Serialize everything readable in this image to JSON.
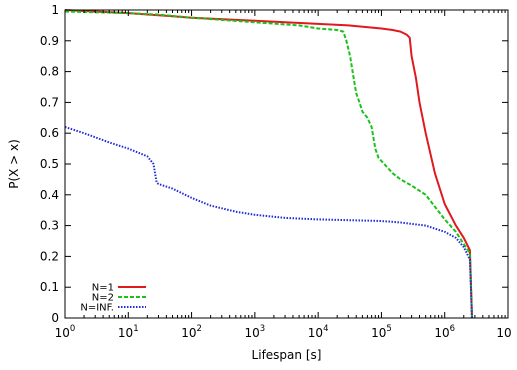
{
  "chart_data": {
    "type": "line",
    "title": "",
    "xlabel": "Lifespan [s]",
    "ylabel": "P(X > x)",
    "xscale": "log",
    "xlim": [
      1,
      10000000
    ],
    "ylim": [
      0,
      1
    ],
    "grid": false,
    "legend_position": "bottom-left",
    "x_ticks": [
      {
        "base": "10",
        "exp": "0"
      },
      {
        "base": "10",
        "exp": "1"
      },
      {
        "base": "10",
        "exp": "2"
      },
      {
        "base": "10",
        "exp": "3"
      },
      {
        "base": "10",
        "exp": "4"
      },
      {
        "base": "10",
        "exp": "5"
      },
      {
        "base": "10",
        "exp": "6"
      },
      {
        "base": "10",
        "exp": ""
      }
    ],
    "y_ticks": [
      "0",
      "0.1",
      "0.2",
      "0.3",
      "0.4",
      "0.5",
      "0.6",
      "0.7",
      "0.8",
      "0.9",
      "1"
    ],
    "series": [
      {
        "name": "N=1",
        "color": "#e0191f",
        "dash": "solid",
        "points": [
          [
            1,
            1.0
          ],
          [
            10,
            0.99
          ],
          [
            50,
            0.98
          ],
          [
            100,
            0.975
          ],
          [
            1000,
            0.965
          ],
          [
            10000,
            0.955
          ],
          [
            30000,
            0.95
          ],
          [
            100000,
            0.94
          ],
          [
            150000,
            0.935
          ],
          [
            200000,
            0.93
          ],
          [
            250000,
            0.92
          ],
          [
            280000,
            0.91
          ],
          [
            300000,
            0.85
          ],
          [
            350000,
            0.78
          ],
          [
            400000,
            0.7
          ],
          [
            500000,
            0.6
          ],
          [
            700000,
            0.47
          ],
          [
            1000000,
            0.37
          ],
          [
            1500000,
            0.3
          ],
          [
            2000000,
            0.26
          ],
          [
            2500000,
            0.22
          ],
          [
            2700000,
            0.0
          ]
        ]
      },
      {
        "name": "N=2",
        "color": "#19c219",
        "dash": "dashed",
        "points": [
          [
            1,
            0.995
          ],
          [
            10,
            0.99
          ],
          [
            30,
            0.985
          ],
          [
            100,
            0.975
          ],
          [
            1000,
            0.96
          ],
          [
            5000,
            0.95
          ],
          [
            10000,
            0.94
          ],
          [
            20000,
            0.935
          ],
          [
            25000,
            0.93
          ],
          [
            28000,
            0.9
          ],
          [
            32000,
            0.85
          ],
          [
            37000,
            0.77
          ],
          [
            40000,
            0.73
          ],
          [
            45000,
            0.7
          ],
          [
            50000,
            0.67
          ],
          [
            60000,
            0.65
          ],
          [
            70000,
            0.62
          ],
          [
            80000,
            0.55
          ],
          [
            90000,
            0.52
          ],
          [
            100000,
            0.51
          ],
          [
            150000,
            0.47
          ],
          [
            200000,
            0.45
          ],
          [
            300000,
            0.43
          ],
          [
            500000,
            0.4
          ],
          [
            1000000,
            0.32
          ],
          [
            1500000,
            0.28
          ],
          [
            2000000,
            0.24
          ],
          [
            2500000,
            0.21
          ],
          [
            2700000,
            0.0
          ]
        ]
      },
      {
        "name": "N=INF.",
        "color": "#1f2bd6",
        "dash": "dotted",
        "points": [
          [
            1,
            0.62
          ],
          [
            2,
            0.6
          ],
          [
            5,
            0.57
          ],
          [
            10,
            0.55
          ],
          [
            20,
            0.525
          ],
          [
            25,
            0.5
          ],
          [
            28,
            0.44
          ],
          [
            30,
            0.435
          ],
          [
            50,
            0.42
          ],
          [
            100,
            0.39
          ],
          [
            200,
            0.365
          ],
          [
            500,
            0.345
          ],
          [
            1000,
            0.335
          ],
          [
            3000,
            0.325
          ],
          [
            10000,
            0.32
          ],
          [
            100000,
            0.315
          ],
          [
            200000,
            0.31
          ],
          [
            500000,
            0.3
          ],
          [
            1000000,
            0.28
          ],
          [
            1500000,
            0.26
          ],
          [
            2000000,
            0.23
          ],
          [
            2500000,
            0.19
          ],
          [
            2700000,
            0.0
          ]
        ]
      }
    ]
  }
}
